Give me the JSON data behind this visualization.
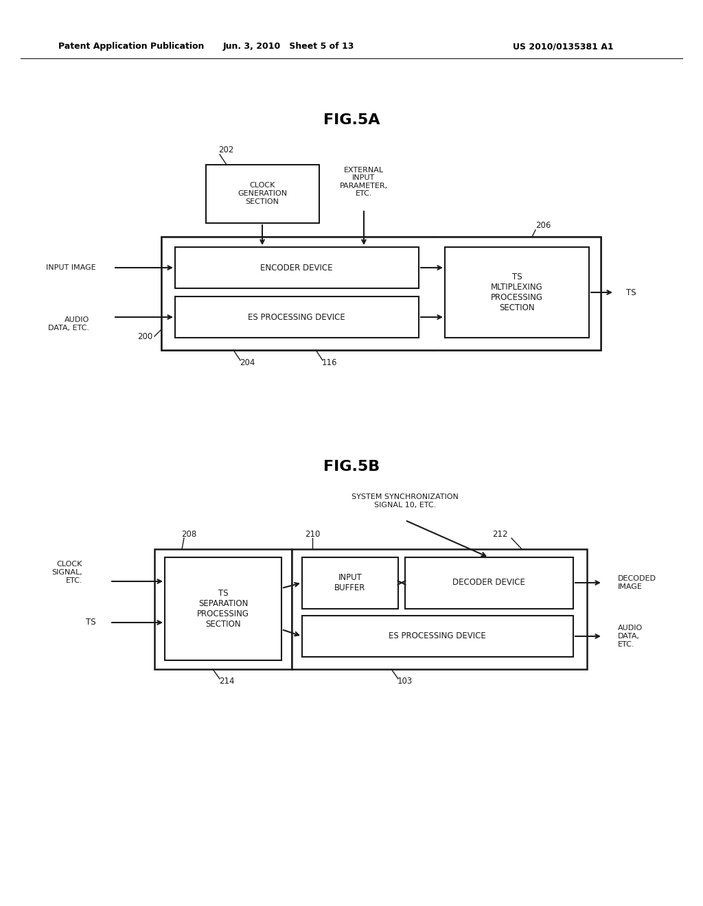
{
  "bg_color": "#ffffff",
  "header_left": "Patent Application Publication",
  "header_mid": "Jun. 3, 2010   Sheet 5 of 13",
  "header_right": "US 2010/0135381 A1",
  "fig5a_title": "FIG.5A",
  "fig5b_title": "FIG.5B",
  "text_color": "#1a1a1a",
  "box_edge_color": "#1a1a1a",
  "box_face_color": "#ffffff"
}
